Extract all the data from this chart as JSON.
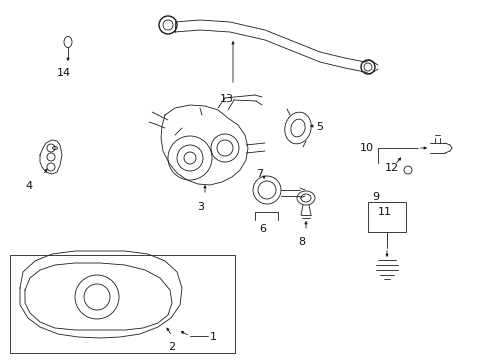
{
  "bg_color": "#ffffff",
  "line_color": "#1a1a1a",
  "label_color": "#111111",
  "fig_width": 4.89,
  "fig_height": 3.6,
  "dpi": 100
}
